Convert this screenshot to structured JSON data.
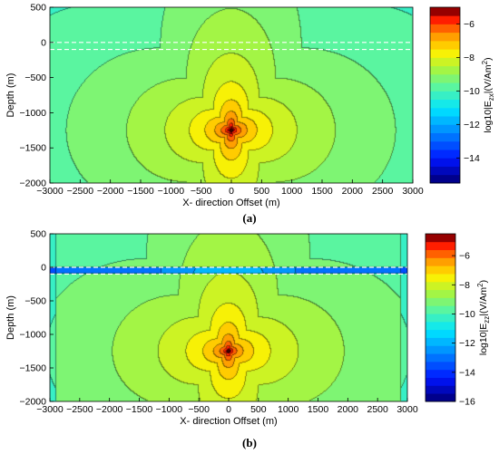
{
  "chart_data": [
    {
      "type": "heatmap",
      "caption": "(a)",
      "xlabel": "X- direction Offset (m)",
      "ylabel": "Depth (m)",
      "colorbar_label": "log10|E_zx|(V/Am²)",
      "colorbar_label_parts": [
        "log10|E",
        "zx",
        "|(V/Am",
        "2",
        ")"
      ],
      "xlim": [
        -3000,
        3000
      ],
      "ylim": [
        -2000,
        500
      ],
      "clim": [
        -15.5,
        -5
      ],
      "colorbar_ticks": [
        -6,
        -8,
        -10,
        -12,
        -14
      ],
      "x_ticks": [
        -3000,
        -2500,
        -2000,
        -1500,
        -1000,
        -500,
        0,
        500,
        1000,
        1500,
        2000,
        2500,
        3000
      ],
      "y_ticks": [
        500,
        0,
        -500,
        -1000,
        -1500,
        -2000
      ],
      "source": {
        "x": 0,
        "z": -1250
      },
      "layer_boundaries": [
        0,
        -100
      ],
      "field_model": "log10 field decaying from source at (0,-1250): peak about -5, about -12 at the far side edges, four-lobed pattern"
    },
    {
      "type": "heatmap",
      "caption": "(b)",
      "xlabel": "X- direction Offset (m)",
      "ylabel": "Depth (m)",
      "colorbar_label": "log10|E_zz|(V/Am²)",
      "colorbar_label_parts": [
        "log10|E",
        "zz",
        "|(V/Am",
        "2",
        ")"
      ],
      "xlim": [
        -3000,
        3000
      ],
      "ylim": [
        -2000,
        500
      ],
      "clim": [
        -16,
        -4.5
      ],
      "colorbar_ticks": [
        -6,
        -8,
        -10,
        -12,
        -14,
        -16
      ],
      "x_ticks": [
        -3000,
        -2500,
        -2000,
        -1500,
        -1000,
        -500,
        0,
        500,
        1000,
        1500,
        2000,
        2500,
        3000
      ],
      "y_ticks": [
        500,
        0,
        -500,
        -1000,
        -1500,
        -2000
      ],
      "source": {
        "x": 0,
        "z": -1250
      },
      "layer_boundaries": [
        0,
        -100
      ],
      "field_model": "log10 field decaying from source at (0,-1250): peak about -4.5, minimum about -16 in the thin layer near 0 m, four-lobed pattern"
    }
  ]
}
